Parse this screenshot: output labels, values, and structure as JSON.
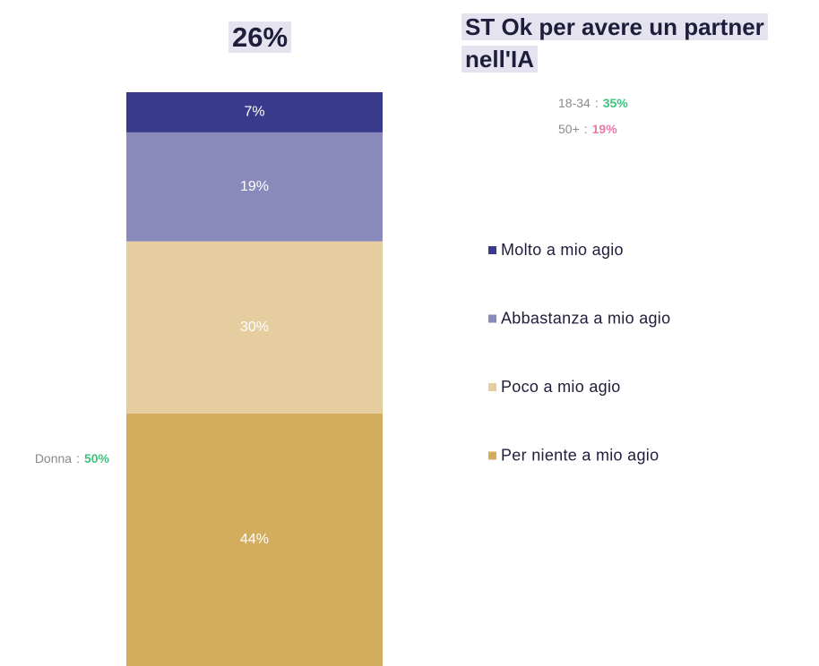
{
  "chart_data": {
    "type": "stacked_bar",
    "headline": "26%",
    "title": "ST Ok per avere un partner nell'IA",
    "ylim": [
      0,
      100
    ],
    "series": [
      {
        "name": "Molto a mio agio",
        "color": "#3a3a8c",
        "values": [
          7
        ],
        "value_labels": [
          "7%"
        ]
      },
      {
        "name": "Abbastanza a mio agio",
        "color": "#8a89bb",
        "values": [
          19
        ],
        "value_labels": [
          "19%"
        ]
      },
      {
        "name": "Poco a mio agio",
        "color": "#e5cda0",
        "values": [
          30
        ],
        "value_labels": [
          "30%"
        ]
      },
      {
        "name": "Per niente a mio agio",
        "color": "#d4ac5e",
        "values": [
          44
        ],
        "value_labels": [
          "44%"
        ]
      }
    ],
    "annotations": [
      {
        "label": "18-34",
        "separator": ":",
        "value": "35%",
        "color": "#3cc47c"
      },
      {
        "label": "50+",
        "separator": ":",
        "value": "19%",
        "color": "#e87aa8"
      },
      {
        "label": "Donna",
        "separator": ":",
        "value": "50%",
        "color": "#3cc47c"
      }
    ]
  }
}
